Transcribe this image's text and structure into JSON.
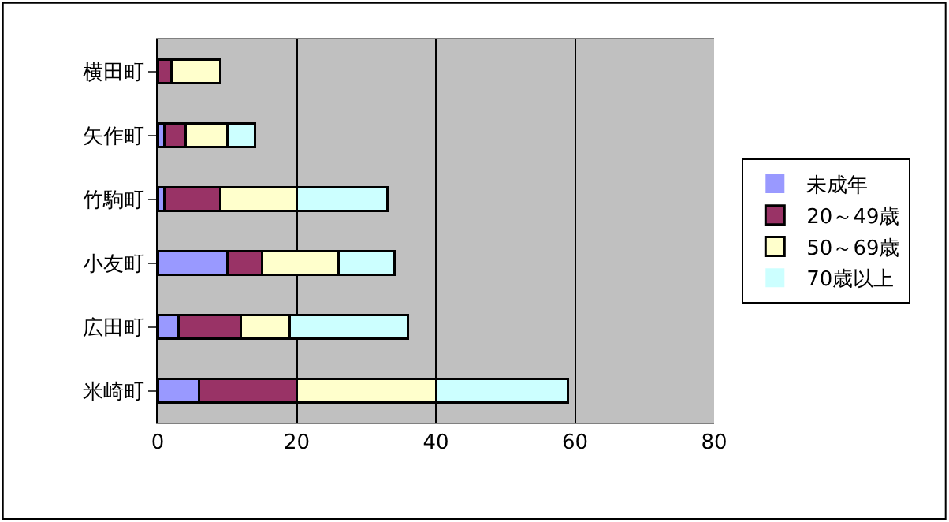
{
  "chart_data": {
    "type": "bar",
    "orientation": "horizontal",
    "stacked": true,
    "categories": [
      "横田町",
      "矢作町",
      "竹駒町",
      "小友町",
      "広田町",
      "米崎町"
    ],
    "series": [
      {
        "name": "未成年",
        "color": "#9999ff",
        "values": [
          0,
          1,
          1,
          10,
          3,
          6
        ]
      },
      {
        "name": "20～49歳",
        "color": "#993366",
        "values": [
          2,
          3,
          8,
          5,
          9,
          14
        ]
      },
      {
        "name": "50～69歳",
        "color": "#ffffcc",
        "values": [
          7,
          6,
          11,
          11,
          7,
          20
        ]
      },
      {
        "name": "70歳以上",
        "color": "#ccffff",
        "values": [
          0,
          4,
          13,
          8,
          17,
          19
        ]
      }
    ],
    "xlim": [
      0,
      80
    ],
    "xticks": [
      0,
      20,
      40,
      60,
      80
    ],
    "grid": "x",
    "legend": "right"
  }
}
